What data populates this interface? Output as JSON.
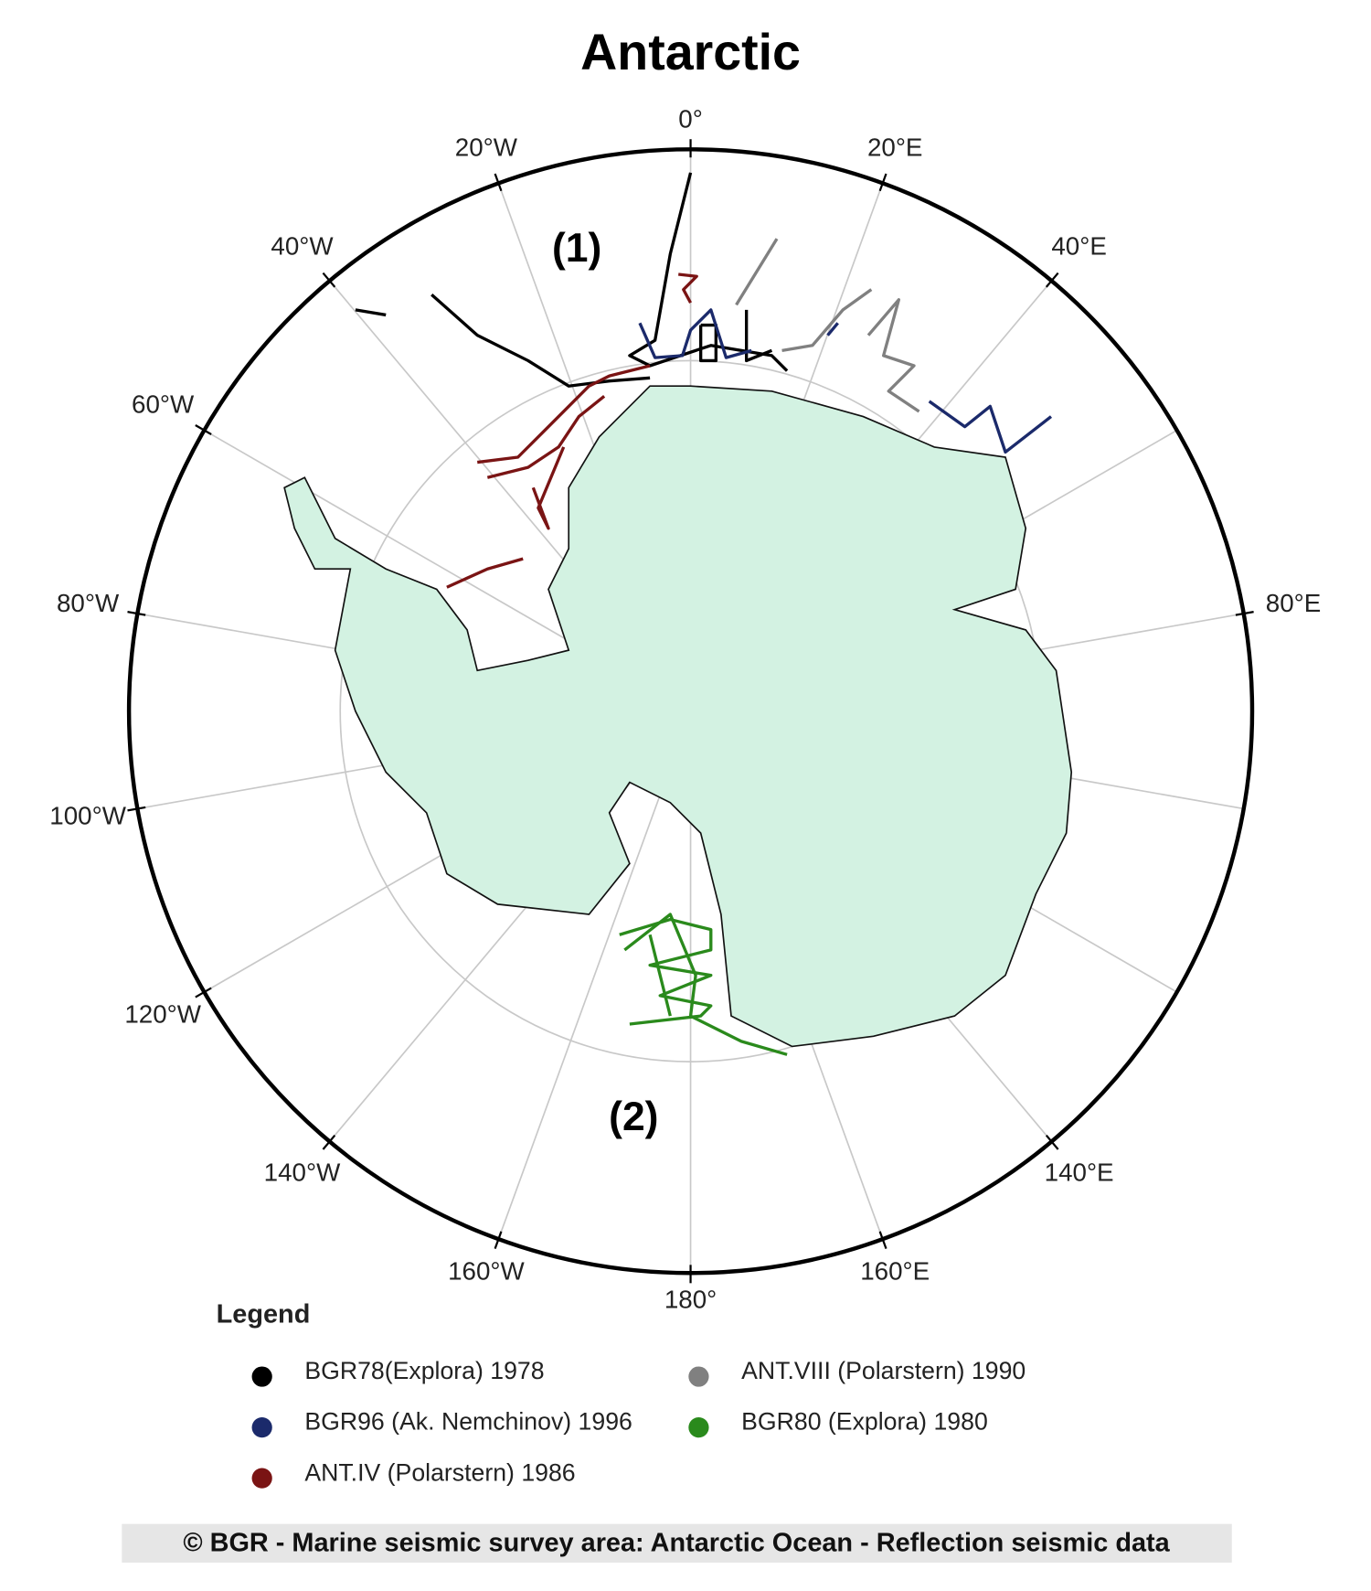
{
  "title": "Antarctic",
  "graticule_labels": [
    "0°",
    "20°E",
    "40°E",
    "80°E",
    "140°E",
    "160°E",
    "180°",
    "160°W",
    "140°W",
    "120°W",
    "100°W",
    "80°W",
    "60°W",
    "40°W",
    "20°W"
  ],
  "regions": [
    "(1)",
    "(2)"
  ],
  "legend": {
    "title": "Legend",
    "entries": [
      {
        "name": "BGR78(Explora) 1978",
        "color": "#000000"
      },
      {
        "name": "BGR96 (Ak. Nemchinov) 1996",
        "color": "#1b2a6b"
      },
      {
        "name": "ANT.IV (Polarstern) 1986",
        "color": "#7a1414"
      },
      {
        "name": "ANT.VIII (Polarstern) 1990",
        "color": "#808080"
      },
      {
        "name": "BGR80 (Explora)  1980",
        "color": "#2a8a1c"
      }
    ]
  },
  "footer": "© BGR - Marine seismic survey area: Antarctic Ocean - Reflection seismic data"
}
